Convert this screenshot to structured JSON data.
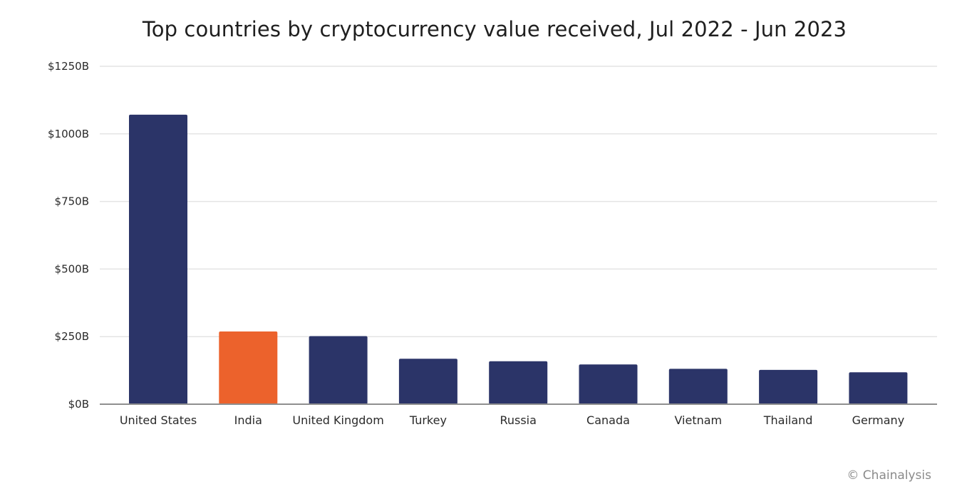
{
  "chart_data": {
    "type": "bar",
    "title": "Top countries by cryptocurrency value received, Jul 2022 - Jun 2023",
    "xlabel": "",
    "ylabel": "",
    "categories": [
      "United States",
      "India",
      "United Kingdom",
      "Turkey",
      "Russia",
      "Canada",
      "Vietnam",
      "Thailand",
      "Germany"
    ],
    "values": [
      1071,
      269,
      252,
      168,
      159,
      147,
      131,
      127,
      118
    ],
    "highlight_category": "India",
    "ylim": [
      0,
      1250
    ],
    "yticks": [
      0,
      250,
      500,
      750,
      1000,
      1250
    ],
    "ytick_labels": [
      "$0B",
      "$250B",
      "$500B",
      "$750B",
      "$1000B",
      "$1250B"
    ],
    "grid": true,
    "legend": "none",
    "colors": {
      "default_bar": "#2b3468",
      "highlight_bar": "#ec622c",
      "gridline": "#e4e4e4",
      "baseline": "#8f8f8f"
    }
  },
  "watermark": "© Chainalysis"
}
